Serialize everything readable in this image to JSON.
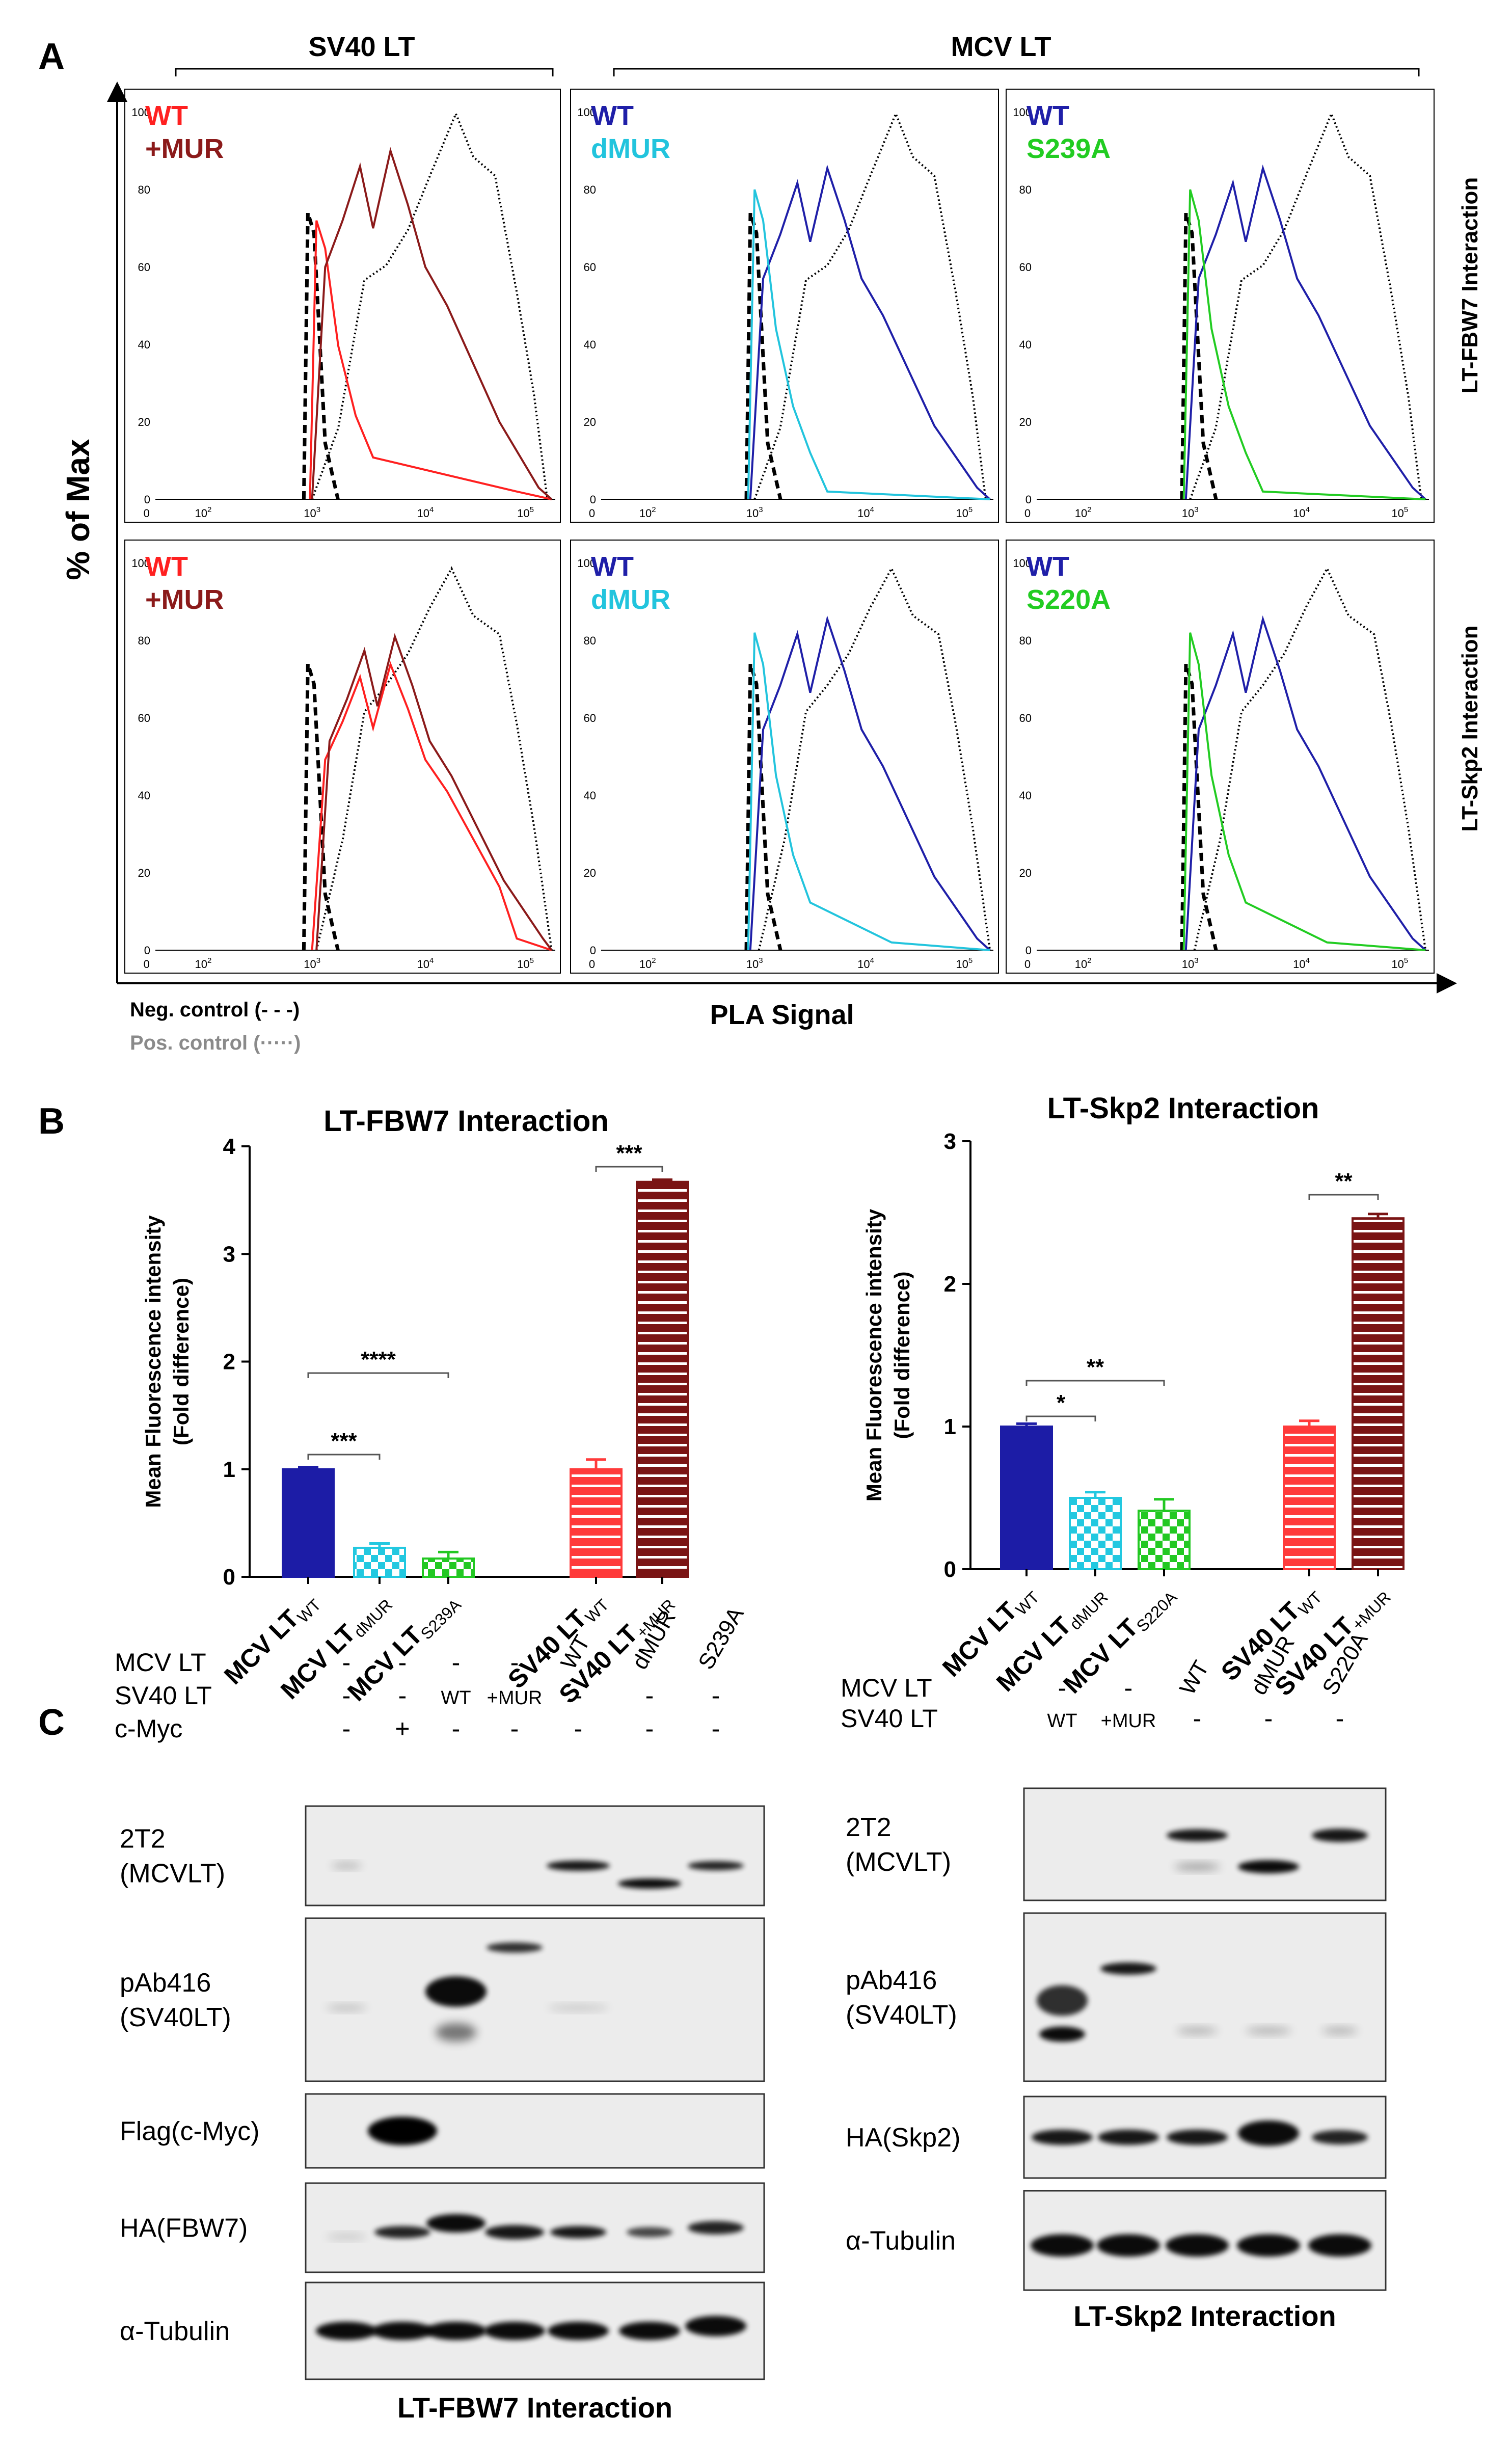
{
  "panel_a": {
    "letter": "A",
    "group_sv40": "SV40 LT",
    "group_mcv": "MCV LT",
    "y_axis_title": "% of Max",
    "x_axis_title": "PLA Signal",
    "row_labels": [
      "LT-FBW7 Interaction",
      "LT-Skp2 Interaction"
    ],
    "neg_control": "Neg. control (- - -)",
    "pos_control": "Pos. control (·····)",
    "y_ticks": [
      "0",
      "20",
      "40",
      "60",
      "80",
      "100"
    ],
    "x_ticks": [
      "0",
      "10",
      "10",
      "10",
      "10"
    ],
    "x_tick_exp": [
      "",
      "2",
      "3",
      "4",
      "5"
    ],
    "colors": {
      "red": "#ff2020",
      "darkred": "#8b1a1a",
      "navy": "#1f1fa8",
      "cyan": "#22c4dd",
      "green": "#22cc22"
    },
    "panels": [
      {
        "l1": "WT",
        "l2": "+MUR",
        "c1": "#ff2020",
        "c2": "#8b1a1a"
      },
      {
        "l1": "WT",
        "l2": "dMUR",
        "c1": "#1f1fa8",
        "c2": "#22c4dd"
      },
      {
        "l1": "WT",
        "l2": "S239A",
        "c1": "#1f1fa8",
        "c2": "#22cc22"
      },
      {
        "l1": "WT",
        "l2": "+MUR",
        "c1": "#ff2020",
        "c2": "#8b1a1a"
      },
      {
        "l1": "WT",
        "l2": "dMUR",
        "c1": "#1f1fa8",
        "c2": "#22c4dd"
      },
      {
        "l1": "WT",
        "l2": "S220A",
        "c1": "#1f1fa8",
        "c2": "#22cc22"
      }
    ]
  },
  "panel_b": {
    "letter": "B",
    "ylabel_1": "Mean Fluorescence intensity",
    "ylabel_2": "(Fold difference)"
  },
  "chart_data": [
    {
      "type": "bar",
      "title": "LT-FBW7 Interaction",
      "ylabel": "Mean Fluorescence intensity (Fold difference)",
      "ylim": [
        0,
        4
      ],
      "yticks": [
        "0",
        "1",
        "2",
        "3",
        "4"
      ],
      "categories": [
        "MCV LT WT",
        "MCV LT dMUR",
        "MCV LT S239A",
        "SV40 LT WT",
        "SV40 LT +MUR"
      ],
      "cat_main": [
        "MCV LT",
        "MCV LT",
        "MCV LT",
        "SV40 LT",
        "SV40 LT"
      ],
      "cat_sub": [
        "WT",
        "dMUR",
        "S239A",
        "WT",
        "+MUR"
      ],
      "values": [
        1.0,
        0.27,
        0.17,
        1.0,
        3.67
      ],
      "errors": [
        0.02,
        0.04,
        0.06,
        0.09,
        0.02
      ],
      "colors": [
        "#1c1ca6",
        "#22c8e0",
        "#22c822",
        "#ff3a3a",
        "#7a1414"
      ],
      "significance": [
        {
          "from": 0,
          "to": 1,
          "label": "***"
        },
        {
          "from": 0,
          "to": 2,
          "label": "****"
        },
        {
          "from": 3,
          "to": 4,
          "label": "***"
        }
      ]
    },
    {
      "type": "bar",
      "title": "LT-Skp2 Interaction",
      "ylabel": "Mean Fluorescence intensity (Fold difference)",
      "ylim": [
        0,
        3
      ],
      "yticks": [
        "0",
        "1",
        "2",
        "3"
      ],
      "categories": [
        "MCV LT WT",
        "MCV LT dMUR",
        "MCV LT S220A",
        "SV40 LT WT",
        "SV40 LT +MUR"
      ],
      "cat_main": [
        "MCV LT",
        "MCV LT",
        "MCV LT",
        "SV40 LT",
        "SV40 LT"
      ],
      "cat_sub": [
        "WT",
        "dMUR",
        "S220A",
        "WT",
        "+MUR"
      ],
      "values": [
        1.0,
        0.5,
        0.41,
        1.0,
        2.46
      ],
      "errors": [
        0.02,
        0.04,
        0.08,
        0.04,
        0.03
      ],
      "colors": [
        "#1c1ca6",
        "#22c8e0",
        "#22c822",
        "#ff3a3a",
        "#7a1414"
      ],
      "significance": [
        {
          "from": 0,
          "to": 1,
          "label": "*"
        },
        {
          "from": 0,
          "to": 2,
          "label": "**"
        },
        {
          "from": 3,
          "to": 4,
          "label": "**"
        }
      ]
    }
  ],
  "panel_c": {
    "letter": "C",
    "left": {
      "header_rows": [
        {
          "label": "MCV LT",
          "cells": [
            "-",
            "-",
            "-",
            "-",
            "WT",
            "dMUR",
            "S239A"
          ]
        },
        {
          "label": "SV40 LT",
          "cells": [
            "-",
            "-",
            "WT",
            "+MUR",
            "-",
            "-",
            "-"
          ]
        },
        {
          "label": "c-Myc",
          "cells": [
            "-",
            "+",
            "-",
            "-",
            "-",
            "-",
            "-"
          ]
        }
      ],
      "blots": [
        "2T2\n(MCVLT)",
        "pAb416\n(SV40LT)",
        "Flag(c-Myc)",
        "HA(FBW7)",
        "α-Tubulin"
      ],
      "caption": "LT-FBW7 Interaction"
    },
    "right": {
      "header_rows": [
        {
          "label": "MCV LT",
          "cells": [
            "-",
            "-",
            "WT",
            "dMUR",
            "S220A"
          ]
        },
        {
          "label": "SV40 LT",
          "cells": [
            "WT",
            "+MUR",
            "-",
            "-",
            "-"
          ]
        }
      ],
      "blots": [
        "2T2\n(MCVLT)",
        "pAb416\n(SV40LT)",
        "HA(Skp2)",
        "α-Tubulin"
      ],
      "caption": "LT-Skp2 Interaction"
    }
  }
}
